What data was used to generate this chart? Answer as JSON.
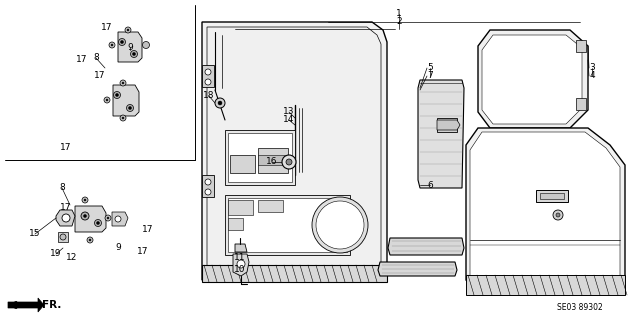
{
  "bg_color": "#ffffff",
  "figsize": [
    6.4,
    3.19
  ],
  "dpi": 100,
  "diagram_code": "SE03 89302",
  "labels": [
    [
      "1",
      399,
      14
    ],
    [
      "2",
      399,
      21
    ],
    [
      "3",
      592,
      68
    ],
    [
      "4",
      592,
      75
    ],
    [
      "5",
      430,
      68
    ],
    [
      "7",
      430,
      76
    ],
    [
      "6",
      430,
      185
    ],
    [
      "8",
      96,
      58
    ],
    [
      "8",
      62,
      188
    ],
    [
      "9",
      130,
      47
    ],
    [
      "9",
      118,
      248
    ],
    [
      "10",
      240,
      270
    ],
    [
      "11",
      240,
      257
    ],
    [
      "12",
      72,
      258
    ],
    [
      "13",
      289,
      112
    ],
    [
      "14",
      289,
      120
    ],
    [
      "15",
      35,
      234
    ],
    [
      "16",
      272,
      162
    ],
    [
      "17",
      107,
      28
    ],
    [
      "17",
      82,
      60
    ],
    [
      "17",
      100,
      75
    ],
    [
      "17",
      66,
      148
    ],
    [
      "17",
      66,
      208
    ],
    [
      "17",
      148,
      230
    ],
    [
      "17",
      143,
      252
    ],
    [
      "18",
      209,
      96
    ],
    [
      "19",
      56,
      254
    ]
  ]
}
